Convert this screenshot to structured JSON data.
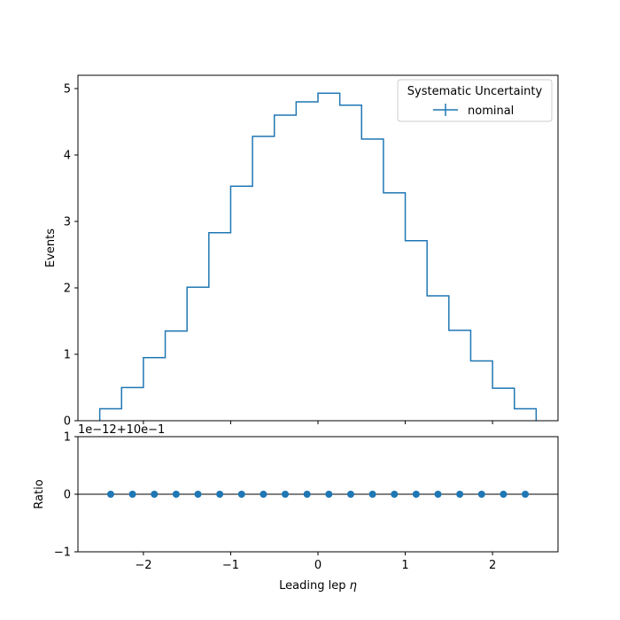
{
  "chart_data": [
    {
      "type": "line",
      "ylabel": "Events",
      "ylim": [
        0,
        5.2
      ],
      "xlim": [
        -2.75,
        2.75
      ],
      "yticks": [
        0,
        1,
        2,
        3,
        4,
        5
      ],
      "ytick_labels": [
        "0",
        "1",
        "2",
        "3",
        "4",
        "5"
      ],
      "bin_edges": [
        -2.5,
        -2.25,
        -2.0,
        -1.75,
        -1.5,
        -1.25,
        -1.0,
        -0.75,
        -0.5,
        -0.25,
        0.0,
        0.25,
        0.5,
        0.75,
        1.0,
        1.25,
        1.5,
        1.75,
        2.0,
        2.25,
        2.5
      ],
      "legend": {
        "title": "Systematic Uncertainty",
        "placement": "top-right",
        "entries": [
          "nominal"
        ]
      },
      "series": [
        {
          "name": "nominal",
          "color": "#1f77b4",
          "style": "step",
          "values": [
            0.18,
            0.5,
            0.95,
            1.35,
            2.01,
            2.83,
            3.53,
            4.28,
            4.6,
            4.8,
            4.93,
            4.75,
            4.24,
            3.43,
            2.71,
            1.88,
            1.36,
            0.9,
            0.49,
            0.18
          ]
        }
      ]
    },
    {
      "type": "scatter",
      "ylabel": "Ratio",
      "xlabel": "Leading lep η",
      "xlabel_main": "Leading lep ",
      "xlabel_symbol": "η",
      "offset_text": "1e−12+10e−1",
      "ylim": [
        -1,
        1
      ],
      "xlim": [
        -2.75,
        2.75
      ],
      "yticks": [
        -1,
        0,
        1
      ],
      "ytick_labels": [
        "−1",
        "0",
        "1"
      ],
      "xticks": [
        -2,
        -1,
        0,
        1,
        2
      ],
      "xtick_labels": [
        "−2",
        "−1",
        "0",
        "1",
        "2"
      ],
      "reference_line": 0,
      "series": [
        {
          "color": "#1f77b4",
          "x": [
            -2.375,
            -2.125,
            -1.875,
            -1.625,
            -1.375,
            -1.125,
            -0.875,
            -0.625,
            -0.375,
            -0.125,
            0.125,
            0.375,
            0.625,
            0.875,
            1.125,
            1.375,
            1.625,
            1.875,
            2.125,
            2.375
          ],
          "values": [
            0,
            0,
            0,
            0,
            0,
            0,
            0,
            0,
            0,
            0,
            0,
            0,
            0,
            0,
            0,
            0,
            0,
            0,
            0,
            0
          ]
        }
      ]
    }
  ]
}
